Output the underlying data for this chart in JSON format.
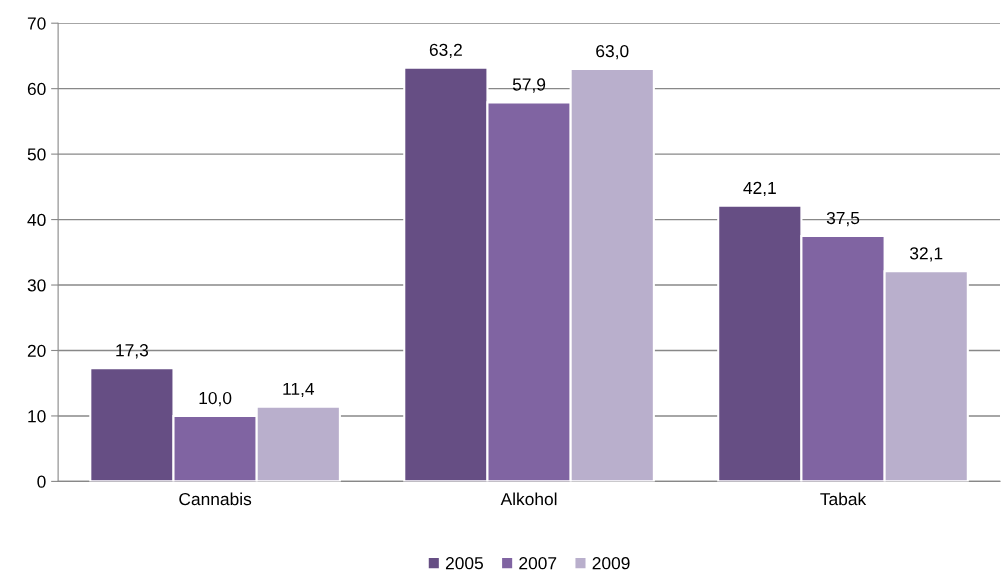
{
  "chart_data": {
    "type": "bar",
    "categories": [
      "Cannabis",
      "Alkohol",
      "Tabak"
    ],
    "series": [
      {
        "name": "2005",
        "color": "#664e84",
        "values": [
          17.3,
          63.2,
          42.1
        ],
        "value_labels": [
          "17,3",
          "63,2",
          "42,1"
        ]
      },
      {
        "name": "2007",
        "color": "#8064a2",
        "values": [
          10.0,
          57.9,
          37.5
        ],
        "value_labels": [
          "10,0",
          "57,9",
          "37,5"
        ]
      },
      {
        "name": "2009",
        "color": "#b9afcc",
        "values": [
          11.4,
          63.0,
          32.1
        ],
        "value_labels": [
          "11,4",
          "63,0",
          "32,1"
        ]
      }
    ],
    "ylim": [
      0,
      70
    ],
    "yticks": [
      0,
      10,
      20,
      30,
      40,
      50,
      60,
      70
    ],
    "grid": "y",
    "legend": "bottom"
  }
}
